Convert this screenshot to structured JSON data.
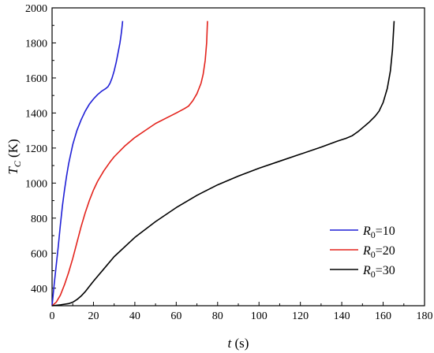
{
  "chart_data": {
    "type": "line",
    "xlabel_symbol": "t",
    "xlabel_unit": " (s)",
    "ylabel_symbol": "T",
    "ylabel_sub": "C",
    "ylabel_unit": " (K)",
    "xlim": [
      0,
      180
    ],
    "ylim": [
      300,
      2000
    ],
    "xticks": [
      0,
      20,
      40,
      60,
      80,
      100,
      120,
      140,
      160,
      180
    ],
    "yticks": [
      400,
      600,
      800,
      1000,
      1200,
      1400,
      1600,
      1800,
      2000
    ],
    "grid": false,
    "legend_position": "bottom-right",
    "series": [
      {
        "label_main": "R",
        "label_sub": "0",
        "label_value": "=10",
        "color": "#1f1fd6",
        "x": [
          0,
          0.5,
          1,
          2,
          3,
          4,
          5,
          6,
          7,
          8,
          10,
          12,
          14,
          16,
          18,
          20,
          22,
          24,
          26,
          27,
          28,
          29,
          30,
          31,
          32,
          32.8,
          33.4,
          33.8,
          34.1
        ],
        "y": [
          300,
          360,
          420,
          530,
          640,
          760,
          870,
          960,
          1040,
          1110,
          1220,
          1300,
          1360,
          1410,
          1450,
          1480,
          1505,
          1525,
          1540,
          1550,
          1570,
          1600,
          1640,
          1690,
          1750,
          1800,
          1850,
          1890,
          1925
        ]
      },
      {
        "label_main": "R",
        "label_sub": "0",
        "label_value": "=20",
        "color": "#e3231c",
        "x": [
          0,
          2,
          4,
          6,
          8,
          10,
          12,
          14,
          16,
          18,
          20,
          22,
          25,
          28,
          30,
          35,
          40,
          45,
          50,
          55,
          60,
          64,
          66,
          68,
          70,
          72,
          73,
          74,
          74.7,
          75.1
        ],
        "y": [
          300,
          320,
          360,
          420,
          490,
          570,
          660,
          750,
          830,
          900,
          960,
          1010,
          1070,
          1120,
          1150,
          1210,
          1260,
          1300,
          1340,
          1370,
          1400,
          1425,
          1440,
          1470,
          1510,
          1570,
          1620,
          1700,
          1800,
          1925
        ]
      },
      {
        "label_main": "R",
        "label_sub": "0",
        "label_value": "=30",
        "color": "#000000",
        "x": [
          0,
          4,
          8,
          10,
          12,
          14,
          16,
          18,
          20,
          25,
          30,
          40,
          50,
          60,
          70,
          80,
          90,
          100,
          110,
          120,
          130,
          138,
          142,
          145,
          148,
          150,
          153,
          156,
          158,
          160,
          162,
          163.5,
          164.5,
          165.3
        ],
        "y": [
          300,
          305,
          312,
          320,
          335,
          355,
          380,
          410,
          440,
          510,
          580,
          690,
          780,
          860,
          930,
          990,
          1040,
          1085,
          1125,
          1165,
          1205,
          1240,
          1255,
          1270,
          1295,
          1315,
          1345,
          1380,
          1410,
          1460,
          1540,
          1640,
          1760,
          1925
        ]
      }
    ]
  }
}
